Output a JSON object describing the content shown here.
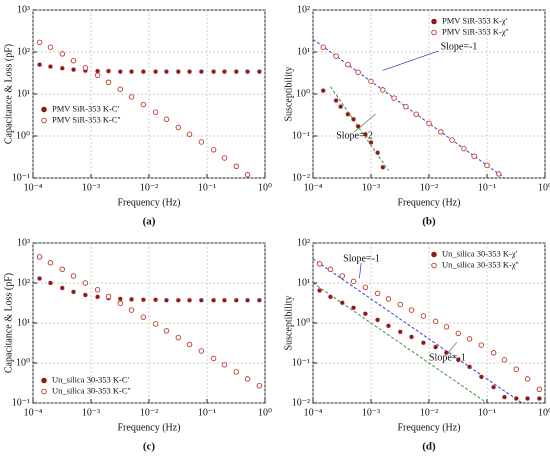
{
  "chart_data": [
    {
      "type": "scatter",
      "label": "(a)",
      "xlabel": "Frequency (Hz)",
      "ylabel": "Capacitance & Loss (pF)",
      "xlog": true,
      "ylog": true,
      "grid": true,
      "legend": "center left",
      "xlim": [
        0.0001,
        1
      ],
      "ylim": [
        0.1,
        1000
      ],
      "xticks": [
        {
          "value": 0.0001,
          "label": "10⁻⁴"
        },
        {
          "value": 0.001,
          "label": "10⁻³"
        },
        {
          "value": 0.01,
          "label": "10⁻²"
        },
        {
          "value": 0.1,
          "label": "10⁻¹"
        },
        {
          "value": 1,
          "label": "10⁰"
        }
      ],
      "yticks": [
        {
          "value": 0.1,
          "label": "10⁻¹"
        },
        {
          "value": 1,
          "label": "10⁰"
        },
        {
          "value": 10,
          "label": "10¹"
        },
        {
          "value": 100,
          "label": "10²"
        },
        {
          "value": 1000,
          "label": "10³"
        }
      ],
      "x": [
        0.00013,
        0.0002,
        0.00032,
        0.0005,
        0.0008,
        0.0013,
        0.002,
        0.0032,
        0.005,
        0.008,
        0.013,
        0.02,
        0.032,
        0.05,
        0.08,
        0.13,
        0.2,
        0.32,
        0.5,
        0.8
      ],
      "series": [
        {
          "name": "PMV SiR-353 K-C'",
          "color": "#8b1a1a",
          "filled": true,
          "values": [
            50,
            45,
            41,
            38,
            36,
            35,
            35,
            34,
            34,
            34,
            34,
            34,
            34,
            34,
            34,
            34,
            34,
            34,
            34,
            34
          ]
        },
        {
          "name": "PMV SiR-353 K-C''",
          "color": "#c0392b",
          "filled": false,
          "values": [
            170,
            130,
            90,
            62,
            42,
            28,
            19,
            13,
            8.5,
            5.6,
            3.7,
            2.5,
            1.6,
            1.1,
            0.72,
            0.47,
            0.3,
            0.19,
            0.12,
            null
          ]
        }
      ]
    },
    {
      "type": "scatter",
      "label": "(b)",
      "xlabel": "Frequency (Hz)",
      "ylabel": "Susceptibility",
      "xlog": true,
      "ylog": true,
      "grid": true,
      "legend": "upper right",
      "xlim": [
        0.0001,
        1
      ],
      "ylim": [
        0.01,
        100
      ],
      "xticks": [
        {
          "value": 0.0001,
          "label": "10⁻⁴"
        },
        {
          "value": 0.001,
          "label": "10⁻³"
        },
        {
          "value": 0.01,
          "label": "10⁻²"
        },
        {
          "value": 0.1,
          "label": "10⁻¹"
        },
        {
          "value": 1,
          "label": "10⁰"
        }
      ],
      "yticks": [
        {
          "value": 0.01,
          "label": "10⁻²"
        },
        {
          "value": 0.1,
          "label": "10⁻¹"
        },
        {
          "value": 1,
          "label": "10⁰"
        },
        {
          "value": 10,
          "label": "10¹"
        },
        {
          "value": 100,
          "label": "10²"
        }
      ],
      "series": [
        {
          "name": "PMV SiR-353 K-χ'",
          "color": "#8b1a1a",
          "filled": true,
          "x": [
            0.00015,
            0.00025,
            0.0003,
            0.0004,
            0.0005,
            0.0006,
            0.0008,
            0.001,
            0.0013,
            0.0016
          ],
          "values": [
            1.2,
            0.7,
            0.5,
            0.33,
            0.25,
            0.17,
            0.11,
            0.07,
            0.04,
            0.018
          ]
        },
        {
          "name": "PMV SiR-353 K-χ''",
          "color": "#c0392b",
          "filled": false,
          "x": [
            0.00015,
            0.00025,
            0.0004,
            0.0006,
            0.001,
            0.0016,
            0.0025,
            0.004,
            0.006,
            0.01,
            0.016,
            0.025,
            0.04,
            0.06,
            0.1,
            0.16
          ],
          "values": [
            13,
            8,
            5,
            3.3,
            2,
            1.25,
            0.8,
            0.5,
            0.33,
            0.2,
            0.125,
            0.08,
            0.05,
            0.033,
            0.02,
            0.0125
          ]
        }
      ],
      "fits": [
        {
          "color": "#3b3bd6",
          "x": [
            0.0001,
            0.2
          ],
          "values": [
            20,
            0.01
          ]
        },
        {
          "color": "#3c8f3c",
          "x": [
            0.0002,
            0.002
          ],
          "values": [
            1.5,
            0.015
          ]
        }
      ],
      "annotations": [
        {
          "text": "Slope=-1",
          "color": "#2b2bc0"
        },
        {
          "text": "Slope=-2",
          "color": "#2e8b2e"
        }
      ]
    },
    {
      "type": "scatter",
      "label": "(c)",
      "xlabel": "Frequency (Hz)",
      "ylabel": "Capacitance & Loss (pF)",
      "xlog": true,
      "ylog": true,
      "grid": true,
      "legend": "lower left",
      "xlim": [
        0.0001,
        1
      ],
      "ylim": [
        0.1,
        1000
      ],
      "xticks": [
        {
          "value": 0.0001,
          "label": "10⁻⁴"
        },
        {
          "value": 0.001,
          "label": "10⁻³"
        },
        {
          "value": 0.01,
          "label": "10⁻²"
        },
        {
          "value": 0.1,
          "label": "10⁻¹"
        },
        {
          "value": 1,
          "label": "10⁰"
        }
      ],
      "yticks": [
        {
          "value": 0.1,
          "label": "10⁻¹"
        },
        {
          "value": 1,
          "label": "10⁰"
        },
        {
          "value": 10,
          "label": "10¹"
        },
        {
          "value": 100,
          "label": "10²"
        },
        {
          "value": 1000,
          "label": "10³"
        }
      ],
      "x": [
        0.00013,
        0.0002,
        0.00032,
        0.0005,
        0.0008,
        0.0013,
        0.002,
        0.0032,
        0.005,
        0.008,
        0.013,
        0.02,
        0.032,
        0.05,
        0.08,
        0.13,
        0.2,
        0.32,
        0.5,
        0.8
      ],
      "series": [
        {
          "name": "Un_silica 30-353 K-C'",
          "color": "#8b1a1a",
          "filled": true,
          "values": [
            130,
            100,
            75,
            60,
            50,
            45,
            42,
            40,
            39,
            38,
            38,
            37,
            37,
            37,
            37,
            37,
            37,
            37,
            37,
            37
          ]
        },
        {
          "name": "Un_silica 30-353 K-C''",
          "color": "#c0392b",
          "filled": false,
          "values": [
            450,
            320,
            220,
            150,
            100,
            68,
            46,
            31,
            21,
            14,
            9.5,
            6.4,
            4.3,
            2.9,
            2,
            1.3,
            0.9,
            0.6,
            0.4,
            0.27
          ]
        }
      ]
    },
    {
      "type": "scatter",
      "label": "(d)",
      "xlabel": "Frequency (Hz)",
      "ylabel": "Susceptibility",
      "xlog": true,
      "ylog": true,
      "grid": true,
      "legend": "upper right",
      "xlim": [
        0.0001,
        1
      ],
      "ylim": [
        0.01,
        100
      ],
      "xticks": [
        {
          "value": 0.0001,
          "label": "10⁻⁴"
        },
        {
          "value": 0.001,
          "label": "10⁻³"
        },
        {
          "value": 0.01,
          "label": "10⁻²"
        },
        {
          "value": 0.1,
          "label": "10⁻¹"
        },
        {
          "value": 1,
          "label": "10⁰"
        }
      ],
      "yticks": [
        {
          "value": 0.01,
          "label": "10⁻²"
        },
        {
          "value": 0.1,
          "label": "10⁻¹"
        },
        {
          "value": 1,
          "label": "10⁰"
        },
        {
          "value": 10,
          "label": "10¹"
        },
        {
          "value": 100,
          "label": "10²"
        }
      ],
      "x": [
        0.00013,
        0.0002,
        0.00032,
        0.0005,
        0.0008,
        0.0013,
        0.002,
        0.0032,
        0.005,
        0.008,
        0.013,
        0.02,
        0.032,
        0.05,
        0.08,
        0.13,
        0.2,
        0.32,
        0.5,
        0.8
      ],
      "series": [
        {
          "name": "Un_silica 30-353 K-χ'",
          "color": "#8b1a1a",
          "filled": true,
          "values": [
            6.5,
            4.5,
            3.2,
            2.4,
            1.7,
            1.2,
            0.85,
            0.6,
            0.45,
            0.32,
            0.25,
            0.18,
            0.12,
            0.08,
            0.045,
            0.025,
            0.014,
            0.013,
            0.013,
            0.013
          ]
        },
        {
          "name": "Un_silica 30-353 K-χ''",
          "color": "#c0392b",
          "filled": false,
          "values": [
            30,
            22,
            15,
            11,
            7.8,
            5.5,
            4,
            2.9,
            2.1,
            1.5,
            1.1,
            0.8,
            0.55,
            0.4,
            0.28,
            0.18,
            0.12,
            0.07,
            0.04,
            0.022
          ]
        }
      ],
      "fits": [
        {
          "color": "#3b3bd6",
          "x": [
            0.0001,
            0.4
          ],
          "values": [
            40,
            0.01
          ]
        },
        {
          "color": "#3c8f3c",
          "x": [
            0.0001,
            0.1
          ],
          "values": [
            10,
            0.01
          ]
        }
      ],
      "annotations": [
        {
          "text": "Slope=-1",
          "color": "#2b2bc0"
        },
        {
          "text": "Slope=-1",
          "color": "#2e8b2e"
        }
      ]
    }
  ]
}
